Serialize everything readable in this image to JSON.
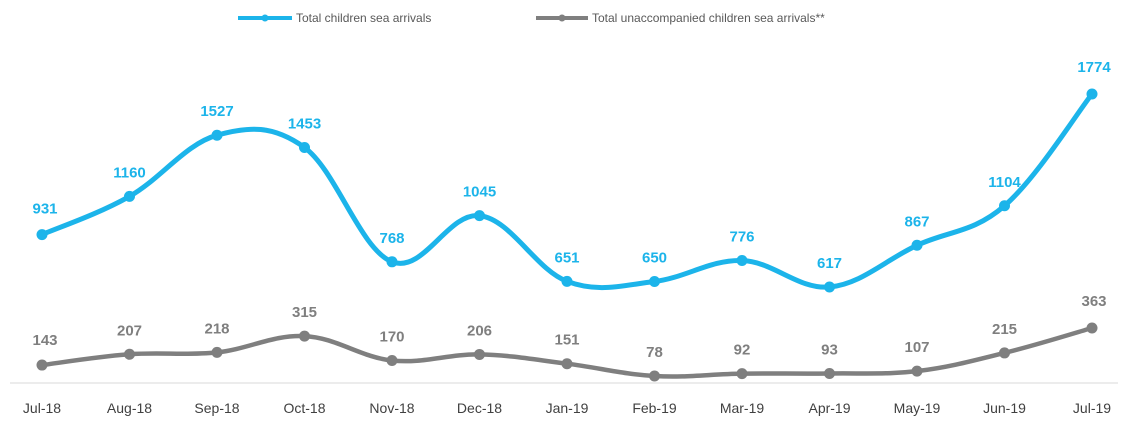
{
  "chart_data": {
    "type": "line",
    "title": "",
    "xlabel": "",
    "ylabel": "",
    "categories": [
      "Jul-18",
      "Aug-18",
      "Sep-18",
      "Oct-18",
      "Nov-18",
      "Dec-18",
      "Jan-19",
      "Feb-19",
      "Mar-19",
      "Apr-19",
      "May-19",
      "Jun-19",
      "Jul-19"
    ],
    "series": [
      {
        "name": "Total children sea arrivals",
        "color": "#1CB4EA",
        "values": [
          931,
          1160,
          1527,
          1453,
          768,
          1045,
          651,
          650,
          776,
          617,
          867,
          1104,
          1774
        ],
        "labels": [
          "931",
          "1160",
          "1527",
          "1453",
          "768",
          "1045",
          "651",
          "650",
          "776",
          "617",
          "867",
          "1104",
          "1774"
        ]
      },
      {
        "name": "Total unaccompanied children sea arrivals**",
        "color": "#7F7F7F",
        "values": [
          143,
          207,
          218,
          315,
          170,
          206,
          151,
          78,
          92,
          93,
          107,
          215,
          363
        ],
        "labels": [
          "143",
          "207",
          "218",
          "315",
          "170",
          "206",
          "151",
          "78",
          "92",
          "93",
          "107",
          "215",
          "363"
        ]
      }
    ],
    "legend_position": "top",
    "grid": false
  }
}
